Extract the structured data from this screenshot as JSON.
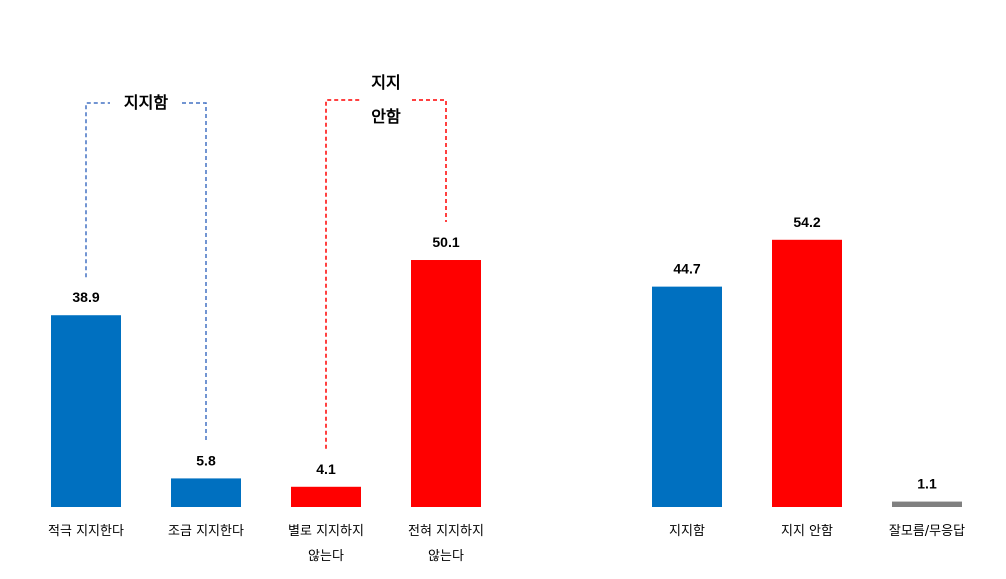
{
  "chart_data": [
    {
      "type": "bar",
      "categories": [
        "적극 지지한다",
        "조금 지지한다",
        "별로 지지하지 않는다",
        "전혀 지지하지 않는다"
      ],
      "category_lines": [
        [
          "적극 지지한다"
        ],
        [
          "조금 지지한다"
        ],
        [
          "별로 지지하지",
          "않는다"
        ],
        [
          "전혀 지지하지",
          "않는다"
        ]
      ],
      "values": [
        38.9,
        5.8,
        4.1,
        50.1
      ],
      "value_labels": [
        "38.9",
        "5.8",
        "4.1",
        "50.1"
      ],
      "colors": [
        "#0070C0",
        "#0070C0",
        "#FF0000",
        "#FF0000"
      ],
      "ylim": [
        0,
        60
      ],
      "grid": false,
      "annotations": [
        {
          "text_lines": [
            "지지함"
          ],
          "spans": [
            0,
            1
          ],
          "color": "#4472C4",
          "style": "dashed"
        },
        {
          "text_lines": [
            "지지",
            "안함"
          ],
          "spans": [
            2,
            3
          ],
          "color": "#FF0000",
          "style": "dashed"
        }
      ]
    },
    {
      "type": "bar",
      "categories": [
        "지지함",
        "지지 안함",
        "잘모름/무응답"
      ],
      "category_lines": [
        [
          "지지함"
        ],
        [
          "지지 안함"
        ],
        [
          "잘모름/무응답"
        ]
      ],
      "values": [
        44.7,
        54.2,
        1.1
      ],
      "value_labels": [
        "44.7",
        "54.2",
        "1.1"
      ],
      "colors": [
        "#0070C0",
        "#FF0000",
        "#808080"
      ],
      "ylim": [
        0,
        60
      ],
      "grid": false
    }
  ]
}
